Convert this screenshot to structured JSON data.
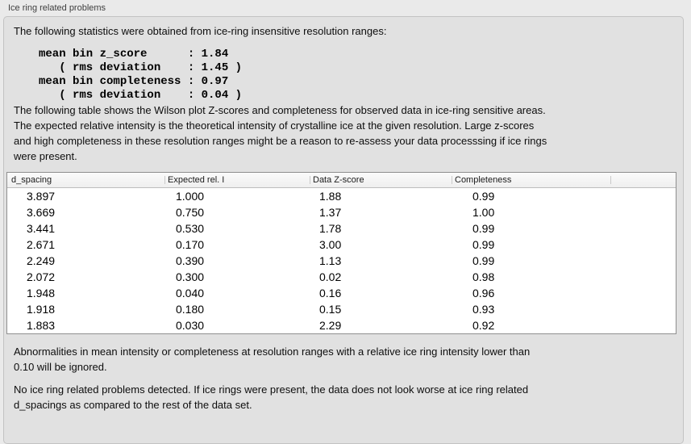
{
  "panel": {
    "title": "Ice ring related problems"
  },
  "sections": {
    "intro": "The following statistics were obtained from ice-ring insensitive resolution ranges:",
    "stats_text": "mean bin z_score      : 1.84\n   ( rms deviation    : 1.45 )\nmean bin completeness : 0.97\n   ( rms deviation    : 0.04 )",
    "table_note": "The following table shows the Wilson plot Z-scores and completeness for observed data in ice-ring sensitive areas.\nThe expected relative intensity is the theoretical intensity of crystalline ice at the given resolution. Large z-scores\nand high completeness in these resolution ranges might be a reason to re-assess your data processsing if ice rings\nwere present.",
    "ignore_note": "Abnormalities in mean intensity or completeness at resolution ranges with a relative ice ring intensity lower than\n0.10 will be ignored.",
    "conclusion": "No ice ring related problems detected. If ice rings were present, the data does not look worse at ice ring related\nd_spacings as compared to the rest of the data set."
  },
  "table": {
    "columns": [
      "d_spacing",
      "Expected rel. I",
      "Data Z-score",
      "Completeness",
      ""
    ],
    "rows": [
      [
        "3.897",
        "1.000",
        "1.88",
        "0.99"
      ],
      [
        "3.669",
        "0.750",
        "1.37",
        "1.00"
      ],
      [
        "3.441",
        "0.530",
        "1.78",
        "0.99"
      ],
      [
        "2.671",
        "0.170",
        "3.00",
        "0.99"
      ],
      [
        "2.249",
        "0.390",
        "1.13",
        "0.99"
      ],
      [
        "2.072",
        "0.300",
        "0.02",
        "0.98"
      ],
      [
        "1.948",
        "0.040",
        "0.16",
        "0.96"
      ],
      [
        "1.918",
        "0.180",
        "0.15",
        "0.93"
      ],
      [
        "1.883",
        "0.030",
        "2.29",
        "0.92"
      ]
    ]
  },
  "colors": {
    "window_background": "#eaeaea",
    "groupbox_background": "#e1e1e1",
    "groupbox_border": "#c3c3c3",
    "table_border": "#8f8f8f",
    "table_body_background": "#ffffff",
    "text": "#0d0d0d"
  }
}
